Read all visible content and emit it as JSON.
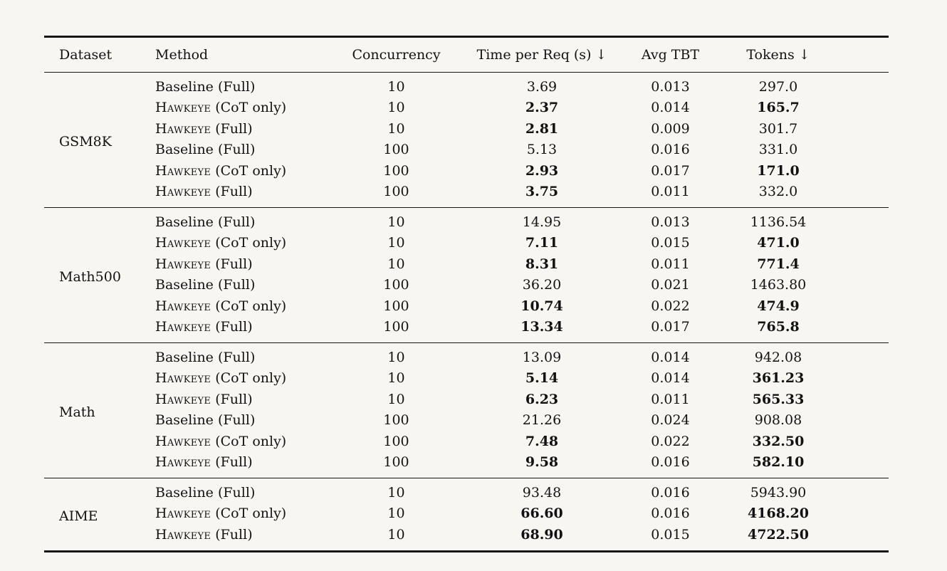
{
  "page": {
    "background": "#f8f6f3",
    "text_color": "#121212"
  },
  "table": {
    "columns": [
      {
        "label": "Dataset",
        "align": "left"
      },
      {
        "label": "Method",
        "align": "left"
      },
      {
        "label": "Concurrency",
        "align": "center"
      },
      {
        "label": "Time per Req (s) ↓",
        "align": "center"
      },
      {
        "label": "Avg TBT",
        "align": "center"
      },
      {
        "label": "Tokens ↓",
        "align": "center"
      }
    ],
    "groups": [
      {
        "dataset": "GSM8K",
        "rows": [
          {
            "method": [
              {
                "text": "Baseline (Full)",
                "smallcaps": false
              }
            ],
            "concurrency": "10",
            "time_per_req": {
              "value": "3.69",
              "bold": false
            },
            "avg_tbt": "0.013",
            "tokens": {
              "value": "297.0",
              "bold": false
            }
          },
          {
            "method": [
              {
                "text": "Hawkeye",
                "smallcaps": true
              },
              {
                "text": " (CoT only)",
                "smallcaps": false
              }
            ],
            "concurrency": "10",
            "time_per_req": {
              "value": "2.37",
              "bold": true
            },
            "avg_tbt": "0.014",
            "tokens": {
              "value": "165.7",
              "bold": true
            }
          },
          {
            "method": [
              {
                "text": "Hawkeye",
                "smallcaps": true
              },
              {
                "text": " (Full)",
                "smallcaps": false
              }
            ],
            "concurrency": "10",
            "time_per_req": {
              "value": "2.81",
              "bold": true
            },
            "avg_tbt": "0.009",
            "tokens": {
              "value": "301.7",
              "bold": false
            }
          },
          {
            "method": [
              {
                "text": "Baseline (Full)",
                "smallcaps": false
              }
            ],
            "concurrency": "100",
            "time_per_req": {
              "value": "5.13",
              "bold": false
            },
            "avg_tbt": "0.016",
            "tokens": {
              "value": "331.0",
              "bold": false
            }
          },
          {
            "method": [
              {
                "text": "Hawkeye",
                "smallcaps": true
              },
              {
                "text": " (CoT only)",
                "smallcaps": false
              }
            ],
            "concurrency": "100",
            "time_per_req": {
              "value": "2.93",
              "bold": true
            },
            "avg_tbt": "0.017",
            "tokens": {
              "value": "171.0",
              "bold": true
            }
          },
          {
            "method": [
              {
                "text": "Hawkeye",
                "smallcaps": true
              },
              {
                "text": " (Full)",
                "smallcaps": false
              }
            ],
            "concurrency": "100",
            "time_per_req": {
              "value": "3.75",
              "bold": true
            },
            "avg_tbt": "0.011",
            "tokens": {
              "value": "332.0",
              "bold": false
            }
          }
        ]
      },
      {
        "dataset": "Math500",
        "rows": [
          {
            "method": [
              {
                "text": "Baseline (Full)",
                "smallcaps": false
              }
            ],
            "concurrency": "10",
            "time_per_req": {
              "value": "14.95",
              "bold": false
            },
            "avg_tbt": "0.013",
            "tokens": {
              "value": "1136.54",
              "bold": false
            }
          },
          {
            "method": [
              {
                "text": "Hawkeye",
                "smallcaps": true
              },
              {
                "text": " (CoT only)",
                "smallcaps": false
              }
            ],
            "concurrency": "10",
            "time_per_req": {
              "value": "7.11",
              "bold": true
            },
            "avg_tbt": "0.015",
            "tokens": {
              "value": "471.0",
              "bold": true
            }
          },
          {
            "method": [
              {
                "text": "Hawkeye",
                "smallcaps": true
              },
              {
                "text": " (Full)",
                "smallcaps": false
              }
            ],
            "concurrency": "10",
            "time_per_req": {
              "value": "8.31",
              "bold": true
            },
            "avg_tbt": "0.011",
            "tokens": {
              "value": "771.4",
              "bold": true
            }
          },
          {
            "method": [
              {
                "text": "Baseline (Full)",
                "smallcaps": false
              }
            ],
            "concurrency": "100",
            "time_per_req": {
              "value": "36.20",
              "bold": false
            },
            "avg_tbt": "0.021",
            "tokens": {
              "value": "1463.80",
              "bold": false
            }
          },
          {
            "method": [
              {
                "text": "Hawkeye",
                "smallcaps": true
              },
              {
                "text": " (CoT only)",
                "smallcaps": false
              }
            ],
            "concurrency": "100",
            "time_per_req": {
              "value": "10.74",
              "bold": true
            },
            "avg_tbt": "0.022",
            "tokens": {
              "value": "474.9",
              "bold": true
            }
          },
          {
            "method": [
              {
                "text": "Hawkeye",
                "smallcaps": true
              },
              {
                "text": " (Full)",
                "smallcaps": false
              }
            ],
            "concurrency": "100",
            "time_per_req": {
              "value": "13.34",
              "bold": true
            },
            "avg_tbt": "0.017",
            "tokens": {
              "value": "765.8",
              "bold": true
            }
          }
        ]
      },
      {
        "dataset": "Math",
        "rows": [
          {
            "method": [
              {
                "text": "Baseline (Full)",
                "smallcaps": false
              }
            ],
            "concurrency": "10",
            "time_per_req": {
              "value": "13.09",
              "bold": false
            },
            "avg_tbt": "0.014",
            "tokens": {
              "value": "942.08",
              "bold": false
            }
          },
          {
            "method": [
              {
                "text": "Hawkeye",
                "smallcaps": true
              },
              {
                "text": " (CoT only)",
                "smallcaps": false
              }
            ],
            "concurrency": "10",
            "time_per_req": {
              "value": "5.14",
              "bold": true
            },
            "avg_tbt": "0.014",
            "tokens": {
              "value": "361.23",
              "bold": true
            }
          },
          {
            "method": [
              {
                "text": "Hawkeye",
                "smallcaps": true
              },
              {
                "text": " (Full)",
                "smallcaps": false
              }
            ],
            "concurrency": "10",
            "time_per_req": {
              "value": "6.23",
              "bold": true
            },
            "avg_tbt": "0.011",
            "tokens": {
              "value": "565.33",
              "bold": true
            }
          },
          {
            "method": [
              {
                "text": "Baseline (Full)",
                "smallcaps": false
              }
            ],
            "concurrency": "100",
            "time_per_req": {
              "value": "21.26",
              "bold": false
            },
            "avg_tbt": "0.024",
            "tokens": {
              "value": "908.08",
              "bold": false
            }
          },
          {
            "method": [
              {
                "text": "Hawkeye",
                "smallcaps": true
              },
              {
                "text": " (CoT only)",
                "smallcaps": false
              }
            ],
            "concurrency": "100",
            "time_per_req": {
              "value": "7.48",
              "bold": true
            },
            "avg_tbt": "0.022",
            "tokens": {
              "value": "332.50",
              "bold": true
            }
          },
          {
            "method": [
              {
                "text": "Hawkeye",
                "smallcaps": true
              },
              {
                "text": " (Full)",
                "smallcaps": false
              }
            ],
            "concurrency": "100",
            "time_per_req": {
              "value": "9.58",
              "bold": true
            },
            "avg_tbt": "0.016",
            "tokens": {
              "value": "582.10",
              "bold": true
            }
          }
        ]
      },
      {
        "dataset": "AIME",
        "rows": [
          {
            "method": [
              {
                "text": "Baseline (Full)",
                "smallcaps": false
              }
            ],
            "concurrency": "10",
            "time_per_req": {
              "value": "93.48",
              "bold": false
            },
            "avg_tbt": "0.016",
            "tokens": {
              "value": "5943.90",
              "bold": false
            }
          },
          {
            "method": [
              {
                "text": "Hawkeye",
                "smallcaps": true
              },
              {
                "text": " (CoT only)",
                "smallcaps": false
              }
            ],
            "concurrency": "10",
            "time_per_req": {
              "value": "66.60",
              "bold": true
            },
            "avg_tbt": "0.016",
            "tokens": {
              "value": "4168.20",
              "bold": true
            }
          },
          {
            "method": [
              {
                "text": "Hawkeye",
                "smallcaps": true
              },
              {
                "text": " (Full)",
                "smallcaps": false
              }
            ],
            "concurrency": "10",
            "time_per_req": {
              "value": "68.90",
              "bold": true
            },
            "avg_tbt": "0.015",
            "tokens": {
              "value": "4722.50",
              "bold": true
            }
          }
        ]
      }
    ]
  }
}
